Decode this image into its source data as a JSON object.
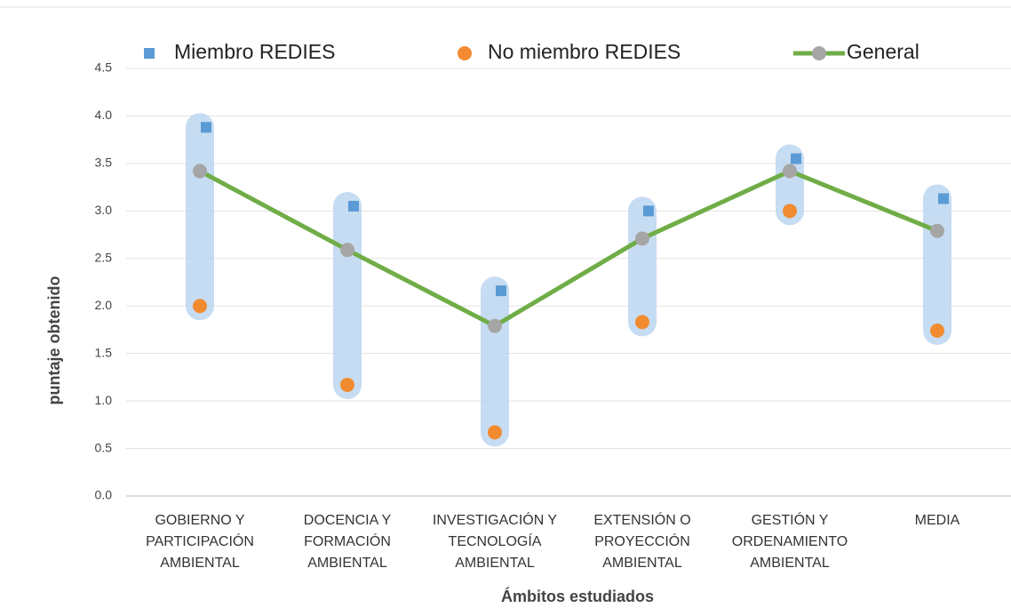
{
  "chart_data": {
    "type": "line",
    "categories": [
      "GOBIERNO Y\nPARTICIPACIÓN\nAMBIENTAL",
      "DOCENCIA Y\nFORMACIÓN\nAMBIENTAL",
      "INVESTIGACIÓN Y\nTECNOLOGÍA\nAMBIENTAL",
      "EXTENSIÓN O\nPROYECCIÓN\nAMBIENTAL",
      "GESTIÓN Y\nORDENAMIENTO\nAMBIENTAL",
      "MEDIA"
    ],
    "series": [
      {
        "name": "Miembro REDIES",
        "color": "#5b9bd5",
        "values": [
          3.88,
          3.05,
          2.16,
          3.0,
          3.55,
          3.13
        ]
      },
      {
        "name": "No miembro REDIES",
        "color": "#f28b30",
        "values": [
          2.0,
          1.17,
          0.67,
          1.83,
          3.0,
          1.74
        ]
      },
      {
        "name": "General",
        "color": "#70ad47",
        "values": [
          3.42,
          2.59,
          1.79,
          2.71,
          3.42,
          2.79
        ]
      }
    ],
    "xlabel": "Ámbitos estudiados",
    "ylabel": "puntaje obtenido",
    "ylim": [
      0,
      4.5
    ],
    "yticks": [
      {
        "value": 0,
        "label": "0.0"
      },
      0.5,
      {
        "value": 1,
        "label": "1.0"
      },
      1.5,
      {
        "value": 2,
        "label": "2.0"
      },
      2.5,
      {
        "value": 3,
        "label": "3.0"
      },
      3.5,
      {
        "value": 4,
        "label": "4.0"
      },
      4.5
    ],
    "grid": true
  }
}
